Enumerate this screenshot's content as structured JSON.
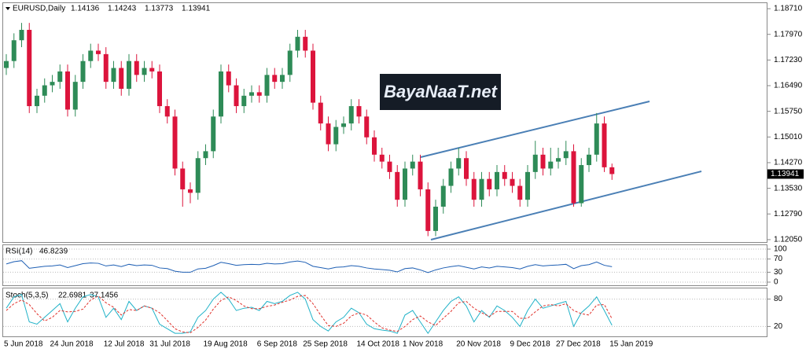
{
  "watermark": "BayaNaaT.net",
  "chart_data": [
    {
      "type": "candlestick",
      "title": "EURUSD,Daily",
      "up_color": "#2e8b57",
      "down_color": "#dc143c",
      "categories": [
        "5 Jun 2018",
        null,
        null,
        null,
        null,
        null,
        "24 Jun 2018",
        null,
        null,
        null,
        null,
        null,
        null,
        "12 Jul 2018",
        null,
        null,
        null,
        null,
        null,
        "31 Jul 2018",
        null,
        null,
        null,
        null,
        null,
        null,
        "19 Aug 2018",
        null,
        null,
        null,
        null,
        null,
        null,
        "6 Sep 2018",
        null,
        null,
        null,
        null,
        null,
        "25 Sep 2018",
        null,
        null,
        null,
        null,
        null,
        null,
        "14 Oct 2018",
        null,
        null,
        null,
        null,
        null,
        "1 Nov 2018",
        null,
        null,
        null,
        null,
        null,
        null,
        "20 Nov 2018",
        null,
        null,
        null,
        null,
        null,
        null,
        "9 Dec 2018",
        null,
        null,
        null,
        null,
        null,
        "27 Dec 2018",
        null,
        null,
        null,
        null,
        null,
        null,
        "15 Jan 2019"
      ],
      "open": [
        1.17,
        1.172,
        1.178,
        1.181,
        1.159,
        1.162,
        1.165,
        1.166,
        1.169,
        1.158,
        1.166,
        1.172,
        1.175,
        1.174,
        1.166,
        1.17,
        1.164,
        1.172,
        1.168,
        1.17,
        1.169,
        1.159,
        1.156,
        1.141,
        1.135,
        1.134,
        1.144,
        1.146,
        1.156,
        1.169,
        1.165,
        1.159,
        1.162,
        1.163,
        1.162,
        1.168,
        1.166,
        1.168,
        1.175,
        1.179,
        1.175,
        1.16,
        1.154,
        1.148,
        1.153,
        1.154,
        1.159,
        1.156,
        1.15,
        1.145,
        1.143,
        1.14,
        1.132,
        1.141,
        1.143,
        1.135,
        1.123,
        1.13,
        1.136,
        1.141,
        1.144,
        1.138,
        1.132,
        1.138,
        1.135,
        1.14,
        1.138,
        1.136,
        1.132,
        1.14,
        1.145,
        1.141,
        1.143,
        1.144,
        1.146,
        1.131,
        1.142,
        1.145,
        1.154,
        1.14136
      ],
      "high": [
        1.174,
        1.18,
        1.183,
        1.183,
        1.164,
        1.167,
        1.168,
        1.171,
        1.171,
        1.168,
        1.174,
        1.177,
        1.177,
        1.176,
        1.172,
        1.172,
        1.174,
        1.174,
        1.172,
        1.172,
        1.171,
        1.161,
        1.158,
        1.143,
        1.137,
        1.146,
        1.148,
        1.158,
        1.171,
        1.171,
        1.167,
        1.164,
        1.165,
        1.165,
        1.17,
        1.17,
        1.17,
        1.177,
        1.181,
        1.181,
        1.177,
        1.162,
        1.156,
        1.155,
        1.156,
        1.161,
        1.161,
        1.158,
        1.152,
        1.147,
        1.145,
        1.142,
        1.143,
        1.145,
        1.145,
        1.137,
        1.132,
        1.138,
        1.143,
        1.147,
        1.146,
        1.14,
        1.14,
        1.14,
        1.142,
        1.142,
        1.14,
        1.138,
        1.142,
        1.149,
        1.147,
        1.147,
        1.147,
        1.149,
        1.148,
        1.144,
        1.147,
        1.157,
        1.156,
        1.14243
      ],
      "low": [
        1.168,
        1.17,
        1.176,
        1.157,
        1.157,
        1.16,
        1.163,
        1.164,
        1.156,
        1.156,
        1.164,
        1.17,
        1.172,
        1.164,
        1.164,
        1.162,
        1.162,
        1.166,
        1.166,
        1.167,
        1.157,
        1.154,
        1.139,
        1.13,
        1.131,
        1.132,
        1.142,
        1.144,
        1.154,
        1.163,
        1.157,
        1.157,
        1.16,
        1.16,
        1.16,
        1.164,
        1.164,
        1.166,
        1.173,
        1.173,
        1.158,
        1.152,
        1.146,
        1.146,
        1.151,
        1.152,
        1.154,
        1.148,
        1.143,
        1.141,
        1.138,
        1.13,
        1.13,
        1.139,
        1.133,
        1.1215,
        1.1215,
        1.128,
        1.134,
        1.139,
        1.136,
        1.13,
        1.13,
        1.133,
        1.133,
        1.136,
        1.134,
        1.13,
        1.13,
        1.138,
        1.139,
        1.139,
        1.141,
        1.142,
        1.13,
        1.13,
        1.14,
        1.143,
        1.14,
        1.13773
      ],
      "close": [
        1.172,
        1.178,
        1.181,
        1.159,
        1.162,
        1.165,
        1.166,
        1.169,
        1.158,
        1.166,
        1.172,
        1.175,
        1.174,
        1.166,
        1.17,
        1.164,
        1.172,
        1.168,
        1.17,
        1.169,
        1.159,
        1.156,
        1.141,
        1.135,
        1.134,
        1.144,
        1.146,
        1.156,
        1.169,
        1.165,
        1.159,
        1.162,
        1.163,
        1.162,
        1.168,
        1.166,
        1.168,
        1.175,
        1.179,
        1.175,
        1.16,
        1.154,
        1.148,
        1.153,
        1.154,
        1.159,
        1.156,
        1.15,
        1.145,
        1.143,
        1.14,
        1.132,
        1.141,
        1.143,
        1.135,
        1.123,
        1.13,
        1.136,
        1.141,
        1.144,
        1.138,
        1.132,
        1.138,
        1.135,
        1.14,
        1.138,
        1.136,
        1.132,
        1.14,
        1.145,
        1.141,
        1.143,
        1.144,
        1.146,
        1.131,
        1.142,
        1.145,
        1.154,
        1.14136,
        1.13941
      ],
      "ylim": [
        1.1198,
        1.1887
      ],
      "yticks": [
        {
          "value": 1.1871,
          "label": "1.18710"
        },
        {
          "value": 1.1797,
          "label": "1.17970"
        },
        {
          "value": 1.1723,
          "label": "1.17230"
        },
        {
          "value": 1.1649,
          "label": "1.16490"
        },
        {
          "value": 1.1575,
          "label": "1.15750"
        },
        {
          "value": 1.1501,
          "label": "1.15010"
        },
        {
          "value": 1.1427,
          "label": "1.14270"
        },
        {
          "value": 1.1353,
          "label": "1.13530"
        },
        {
          "value": 1.1279,
          "label": "1.12790"
        },
        {
          "value": 1.1205,
          "label": "1.12050"
        }
      ]
    },
    {
      "type": "line",
      "title": "RSI(14)",
      "color": "#1e5fb4",
      "values": [
        55,
        62,
        65,
        42,
        45,
        48,
        49,
        52,
        44,
        50,
        56,
        58,
        57,
        49,
        52,
        47,
        54,
        50,
        52,
        51,
        43,
        41,
        33,
        30,
        30,
        40,
        42,
        50,
        60,
        56,
        51,
        53,
        54,
        53,
        57,
        55,
        56,
        61,
        64,
        60,
        48,
        44,
        40,
        45,
        46,
        50,
        48,
        43,
        40,
        38,
        36,
        31,
        41,
        43,
        37,
        29,
        37,
        43,
        47,
        50,
        45,
        40,
        46,
        43,
        48,
        46,
        44,
        40,
        48,
        53,
        49,
        51,
        52,
        54,
        41,
        50,
        53,
        61,
        51,
        46.8239
      ],
      "ylim": [
        0,
        100
      ],
      "yticks": [
        100,
        70,
        30,
        0
      ]
    },
    {
      "type": "line",
      "title": "Stoch(5,3,5)",
      "series": [
        {
          "color": "#20b2c8",
          "values": [
            60,
            85,
            90,
            30,
            25,
            40,
            55,
            70,
            30,
            60,
            85,
            90,
            85,
            40,
            60,
            35,
            75,
            55,
            65,
            60,
            25,
            15,
            5,
            5,
            8,
            40,
            55,
            80,
            95,
            80,
            55,
            60,
            62,
            55,
            75,
            70,
            75,
            88,
            95,
            80,
            35,
            20,
            10,
            30,
            40,
            60,
            50,
            25,
            15,
            12,
            10,
            5,
            45,
            55,
            30,
            5,
            30,
            55,
            75,
            85,
            65,
            30,
            55,
            40,
            65,
            55,
            40,
            20,
            55,
            80,
            60,
            65,
            70,
            75,
            20,
            50,
            65,
            85,
            55,
            22.6981
          ]
        },
        {
          "color": "#e0302a",
          "dashed": true,
          "values": [
            55,
            70,
            78,
            68,
            48,
            32,
            40,
            55,
            52,
            53,
            58,
            78,
            87,
            72,
            62,
            45,
            57,
            55,
            65,
            60,
            50,
            33,
            15,
            8,
            6,
            18,
            34,
            58,
            77,
            85,
            77,
            65,
            59,
            59,
            64,
            67,
            73,
            78,
            86,
            88,
            70,
            45,
            22,
            20,
            27,
            43,
            50,
            45,
            30,
            17,
            12,
            9,
            20,
            35,
            43,
            30,
            22,
            38,
            53,
            72,
            75,
            60,
            50,
            42,
            53,
            53,
            53,
            38,
            38,
            52,
            65,
            68,
            65,
            70,
            55,
            48,
            45,
            67,
            68,
            37.1456
          ]
        }
      ],
      "ylim": [
        0,
        100
      ],
      "yticks": [
        80,
        20
      ]
    }
  ]
}
